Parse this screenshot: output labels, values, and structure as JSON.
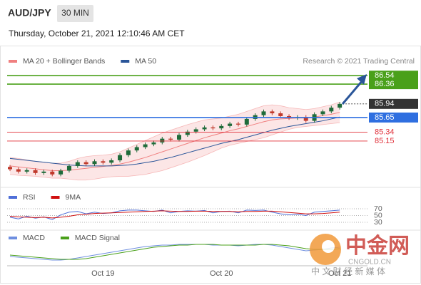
{
  "header": {
    "symbol": "AUD/JPY",
    "timeframe": "30 MIN",
    "datetime": "Thursday, October 21, 2021 12:10:46 AM CET"
  },
  "watermark": {
    "name": "中金网",
    "domain": "CNGOLD.CN",
    "slogan": "中 文 财 经 新 媒 体"
  },
  "chart_data": [
    {
      "type": "candlestick",
      "source": "Research © 2021 Trading Central",
      "categories": [
        null,
        null,
        null,
        null,
        null,
        null,
        null,
        null,
        null,
        null,
        null,
        "Oct 19",
        null,
        null,
        null,
        null,
        null,
        null,
        null,
        null,
        null,
        null,
        null,
        null,
        null,
        "Oct 20",
        null,
        null,
        null,
        null,
        null,
        null,
        null,
        null,
        null,
        null,
        null,
        null,
        null,
        "Oct 21"
      ],
      "open": [
        84.6,
        84.55,
        84.5,
        84.53,
        84.47,
        84.5,
        84.44,
        84.52,
        84.62,
        84.7,
        84.66,
        84.72,
        84.69,
        84.74,
        84.85,
        84.95,
        85.02,
        85.08,
        85.12,
        85.2,
        85.18,
        85.28,
        85.35,
        85.4,
        85.44,
        85.42,
        85.47,
        85.52,
        85.5,
        85.62,
        85.7,
        85.78,
        85.74,
        85.68,
        85.64,
        85.66,
        85.58,
        85.72,
        85.78,
        85.86
      ],
      "high": [
        84.64,
        84.59,
        84.57,
        84.57,
        84.54,
        84.54,
        84.56,
        84.66,
        84.74,
        84.74,
        84.76,
        84.76,
        84.78,
        84.89,
        84.99,
        85.06,
        85.12,
        85.16,
        85.24,
        85.24,
        85.32,
        85.39,
        85.44,
        85.48,
        85.48,
        85.51,
        85.56,
        85.56,
        85.66,
        85.74,
        85.82,
        85.82,
        85.78,
        85.72,
        85.7,
        85.7,
        85.76,
        85.82,
        85.9,
        85.98
      ],
      "low": [
        84.51,
        84.46,
        84.46,
        84.43,
        84.43,
        84.4,
        84.4,
        84.48,
        84.58,
        84.62,
        84.62,
        84.65,
        84.65,
        84.7,
        84.81,
        84.91,
        84.98,
        85.04,
        85.08,
        85.14,
        85.14,
        85.24,
        85.31,
        85.36,
        85.38,
        85.38,
        85.43,
        85.46,
        85.46,
        85.58,
        85.66,
        85.7,
        85.64,
        85.6,
        85.6,
        85.54,
        85.54,
        85.68,
        85.74,
        85.82
      ],
      "close": [
        84.55,
        84.5,
        84.53,
        84.47,
        84.5,
        84.44,
        84.52,
        84.62,
        84.7,
        84.66,
        84.72,
        84.69,
        84.74,
        84.85,
        84.95,
        85.02,
        85.08,
        85.12,
        85.2,
        85.18,
        85.28,
        85.35,
        85.4,
        85.44,
        85.42,
        85.47,
        85.52,
        85.5,
        85.62,
        85.7,
        85.78,
        85.74,
        85.68,
        85.64,
        85.66,
        85.58,
        85.72,
        85.78,
        85.86,
        85.94
      ],
      "up_color": "#1f6b3a",
      "down_color": "#c0392b",
      "series": [
        {
          "name": "MA 20 + Bollinger Bands",
          "color": "#f08080",
          "values": [
            84.62,
            84.6,
            84.58,
            84.56,
            84.54,
            84.52,
            84.52,
            84.53,
            84.55,
            84.57,
            84.59,
            84.61,
            84.63,
            84.66,
            84.7,
            84.75,
            84.8,
            84.86,
            84.92,
            84.98,
            85.04,
            85.1,
            85.16,
            85.22,
            85.27,
            85.32,
            85.37,
            85.41,
            85.46,
            85.51,
            85.56,
            85.6,
            85.62,
            85.63,
            85.64,
            85.64,
            85.66,
            85.69,
            85.72,
            85.76
          ],
          "upper": [
            84.8,
            84.78,
            84.75,
            84.72,
            84.7,
            84.68,
            84.68,
            84.72,
            84.78,
            84.82,
            84.84,
            84.85,
            84.87,
            84.92,
            85.0,
            85.08,
            85.16,
            85.24,
            85.32,
            85.38,
            85.44,
            85.5,
            85.55,
            85.6,
            85.62,
            85.64,
            85.68,
            85.72,
            85.78,
            85.84,
            85.9,
            85.92,
            85.9,
            85.86,
            85.84,
            85.82,
            85.84,
            85.88,
            85.92,
            85.98
          ],
          "lower": [
            84.44,
            84.42,
            84.41,
            84.4,
            84.38,
            84.36,
            84.36,
            84.34,
            84.32,
            84.32,
            84.34,
            84.37,
            84.39,
            84.4,
            84.4,
            84.42,
            84.44,
            84.48,
            84.52,
            84.58,
            84.64,
            84.7,
            84.77,
            84.84,
            84.92,
            85.0,
            85.06,
            85.1,
            85.14,
            85.18,
            85.22,
            85.28,
            85.34,
            85.4,
            85.44,
            85.46,
            85.48,
            85.5,
            85.52,
            85.54
          ]
        },
        {
          "name": "MA 50",
          "color": "#2a5599",
          "values": [
            84.78,
            84.76,
            84.74,
            84.72,
            84.7,
            84.68,
            84.66,
            84.64,
            84.63,
            84.62,
            84.62,
            84.62,
            84.62,
            84.63,
            84.64,
            84.66,
            84.69,
            84.72,
            84.76,
            84.8,
            84.85,
            84.9,
            84.95,
            85.0,
            85.05,
            85.1,
            85.14,
            85.18,
            85.23,
            85.28,
            85.33,
            85.38,
            85.42,
            85.46,
            85.49,
            85.52,
            85.55,
            85.58,
            85.62,
            85.66
          ]
        }
      ],
      "levels": [
        {
          "value": 86.54,
          "color": "#4aa01a",
          "style": "box",
          "line": "solid"
        },
        {
          "value": 86.36,
          "color": "#4aa01a",
          "style": "box",
          "line": "solid"
        },
        {
          "value": 85.94,
          "color": "#333333",
          "style": "box",
          "line": "dotted"
        },
        {
          "value": 85.65,
          "color": "#2f6fe0",
          "style": "box",
          "line": "solid"
        },
        {
          "value": 85.34,
          "color": "#e0303a",
          "style": "text",
          "line": "solid"
        },
        {
          "value": 85.15,
          "color": "#e0303a",
          "style": "text",
          "line": "solid"
        }
      ],
      "ylim": [
        84.24,
        86.71
      ]
    },
    {
      "type": "line",
      "ylim": [
        10,
        90
      ],
      "yticks": [
        30,
        50,
        70
      ],
      "grid": true,
      "series": [
        {
          "name": "RSI",
          "color": "#4f6fd8",
          "values": [
            45,
            40,
            48,
            42,
            46,
            38,
            52,
            60,
            62,
            55,
            60,
            56,
            58,
            64,
            66,
            66,
            64,
            62,
            66,
            58,
            62,
            64,
            63,
            65,
            58,
            62,
            63,
            58,
            66,
            65,
            66,
            60,
            55,
            52,
            54,
            50,
            60,
            62,
            64,
            66
          ]
        },
        {
          "name": "9MA",
          "color": "#d01010",
          "values": [
            48,
            46,
            45,
            44,
            45,
            43,
            45,
            48,
            52,
            54,
            56,
            57,
            58,
            59,
            60,
            61,
            62,
            63,
            64,
            63,
            62,
            62,
            63,
            63,
            62,
            62,
            62,
            61,
            62,
            62,
            63,
            63,
            61,
            59,
            57,
            55,
            55,
            56,
            58,
            60
          ]
        }
      ]
    },
    {
      "type": "line",
      "ylim": [
        -0.2,
        0.2
      ],
      "grid": false,
      "series": [
        {
          "name": "MACD",
          "color": "#6f8fe0",
          "values": [
            -0.08,
            -0.09,
            -0.1,
            -0.11,
            -0.12,
            -0.13,
            -0.13,
            -0.12,
            -0.1,
            -0.08,
            -0.06,
            -0.04,
            -0.02,
            0.0,
            0.02,
            0.04,
            0.06,
            0.07,
            0.08,
            0.08,
            0.09,
            0.09,
            0.09,
            0.09,
            0.08,
            0.08,
            0.08,
            0.07,
            0.08,
            0.09,
            0.09,
            0.08,
            0.06,
            0.04,
            0.02,
            0.0,
            0.01,
            0.02,
            0.04,
            0.05
          ]
        },
        {
          "name": "MACD Signal",
          "color": "#4aa01a",
          "values": [
            -0.06,
            -0.07,
            -0.08,
            -0.09,
            -0.1,
            -0.11,
            -0.12,
            -0.12,
            -0.12,
            -0.11,
            -0.09,
            -0.07,
            -0.05,
            -0.03,
            -0.01,
            0.01,
            0.03,
            0.05,
            0.06,
            0.07,
            0.08,
            0.08,
            0.09,
            0.09,
            0.09,
            0.08,
            0.08,
            0.08,
            0.08,
            0.08,
            0.09,
            0.09,
            0.08,
            0.07,
            0.05,
            0.03,
            0.02,
            0.02,
            0.02,
            0.03
          ]
        }
      ]
    }
  ]
}
